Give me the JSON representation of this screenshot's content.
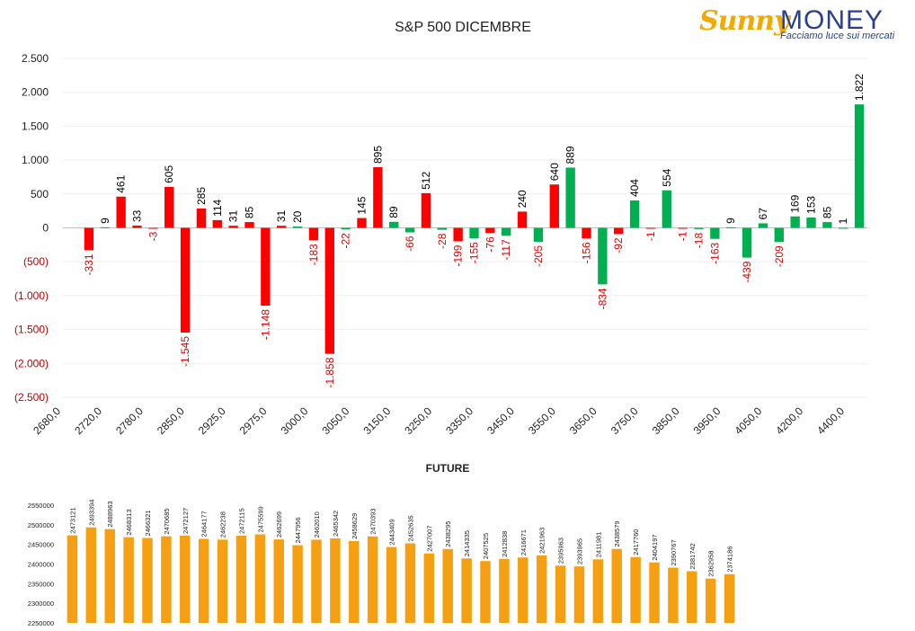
{
  "header": {
    "logo_sunny": "Sunny",
    "logo_money": "MONEY",
    "logo_tagline": "Facciamo luce sui mercati"
  },
  "chart_data": [
    {
      "type": "bar",
      "title": "S&P 500 DICEMBRE",
      "ylim": [
        -2500,
        2500
      ],
      "yticks": [
        "2.500",
        "2.000",
        "1.500",
        "1.000",
        "500",
        "0",
        "(500)",
        "(1.000)",
        "(1.500)",
        "(2.000)",
        "(2.500)"
      ],
      "ytick_values": [
        2500,
        2000,
        1500,
        1000,
        500,
        0,
        -500,
        -1000,
        -1500,
        -2000,
        -2500
      ],
      "x_tick_labels": [
        "2680,0",
        "2720,0",
        "2780,0",
        "2850,0",
        "2925,0",
        "2975,0",
        "3000,0",
        "3050,0",
        "3150,0",
        "3250,0",
        "3350,0",
        "3450,0",
        "3550,0",
        "3650,0",
        "3750,0",
        "3850,0",
        "3950,0",
        "4050,0",
        "4200,0",
        "4400,0"
      ],
      "grid": true,
      "colors": {
        "red": "#ff0000",
        "green": "#00b050",
        "neg_label": "#e00000",
        "pos_label": "#000000"
      },
      "bars": [
        {
          "value": -331,
          "label": "-331",
          "color": "red"
        },
        {
          "value": 9,
          "label": "9",
          "color": "green"
        },
        {
          "value": 461,
          "label": "461",
          "color": "red"
        },
        {
          "value": 33,
          "label": "33",
          "color": "red"
        },
        {
          "value": -3,
          "label": "-3",
          "color": "red"
        },
        {
          "value": 605,
          "label": "605",
          "color": "red"
        },
        {
          "value": -1545,
          "label": "-1.545",
          "color": "red"
        },
        {
          "value": 285,
          "label": "285",
          "color": "red"
        },
        {
          "value": 114,
          "label": "114",
          "color": "red"
        },
        {
          "value": 31,
          "label": "31",
          "color": "red"
        },
        {
          "value": 85,
          "label": "85",
          "color": "red"
        },
        {
          "value": -1148,
          "label": "-1.148",
          "color": "red"
        },
        {
          "value": 31,
          "label": "31",
          "color": "red"
        },
        {
          "value": 20,
          "label": "20",
          "color": "green"
        },
        {
          "value": -183,
          "label": "-183",
          "color": "red"
        },
        {
          "value": -1858,
          "label": "-1.858",
          "color": "red"
        },
        {
          "value": -22,
          "label": "-22",
          "color": "green"
        },
        {
          "value": 145,
          "label": "145",
          "color": "red"
        },
        {
          "value": 895,
          "label": "895",
          "color": "red"
        },
        {
          "value": 89,
          "label": "89",
          "color": "green"
        },
        {
          "value": -66,
          "label": "-66",
          "color": "green"
        },
        {
          "value": 512,
          "label": "512",
          "color": "red"
        },
        {
          "value": -28,
          "label": "-28",
          "color": "green"
        },
        {
          "value": -199,
          "label": "-199",
          "color": "red"
        },
        {
          "value": -155,
          "label": "-155",
          "color": "green"
        },
        {
          "value": -76,
          "label": "-76",
          "color": "red"
        },
        {
          "value": -117,
          "label": "-117",
          "color": "green"
        },
        {
          "value": 240,
          "label": "240",
          "color": "red"
        },
        {
          "value": -205,
          "label": "-205",
          "color": "green"
        },
        {
          "value": 640,
          "label": "640",
          "color": "red"
        },
        {
          "value": 889,
          "label": "889",
          "color": "green"
        },
        {
          "value": -156,
          "label": "-156",
          "color": "red"
        },
        {
          "value": -834,
          "label": "-834",
          "color": "green"
        },
        {
          "value": -92,
          "label": "-92",
          "color": "red"
        },
        {
          "value": 404,
          "label": "404",
          "color": "green"
        },
        {
          "value": -1,
          "label": "-1",
          "color": "red"
        },
        {
          "value": 554,
          "label": "554",
          "color": "green"
        },
        {
          "value": -1,
          "label": "-1",
          "color": "red"
        },
        {
          "value": -18,
          "label": "-18",
          "color": "green"
        },
        {
          "value": -163,
          "label": "-163",
          "color": "green"
        },
        {
          "value": 9,
          "label": "9",
          "color": "green"
        },
        {
          "value": -439,
          "label": "-439",
          "color": "green"
        },
        {
          "value": 67,
          "label": "67",
          "color": "green"
        },
        {
          "value": -209,
          "label": "-209",
          "color": "green"
        },
        {
          "value": 169,
          "label": "169",
          "color": "green"
        },
        {
          "value": 153,
          "label": "153",
          "color": "green"
        },
        {
          "value": 85,
          "label": "85",
          "color": "green"
        },
        {
          "value": 1,
          "label": "1",
          "color": "green"
        },
        {
          "value": 1822,
          "label": "1.822",
          "color": "green"
        }
      ]
    },
    {
      "type": "bar",
      "title": "FUTURE",
      "ylim": [
        2250000,
        2550000
      ],
      "yticks": [
        "2550000",
        "2500000",
        "2450000",
        "2400000",
        "2350000",
        "2300000",
        "2250000"
      ],
      "ytick_values": [
        2550000,
        2500000,
        2450000,
        2400000,
        2350000,
        2300000,
        2250000
      ],
      "color": "#f5a013",
      "values": [
        2473121,
        2493394,
        2488963,
        2468313,
        2466321,
        2470685,
        2472127,
        2464177,
        2462238,
        2472115,
        2475599,
        2462699,
        2447956,
        2462010,
        2465342,
        2458629,
        2470393,
        2443409,
        2452635,
        2427007,
        2438295,
        2414335,
        2407525,
        2412838,
        2416671,
        2421963,
        2395963,
        2393965,
        2411981,
        2438579,
        2417760,
        2404197,
        2390767,
        2381742,
        2362958,
        2374186
      ]
    }
  ]
}
